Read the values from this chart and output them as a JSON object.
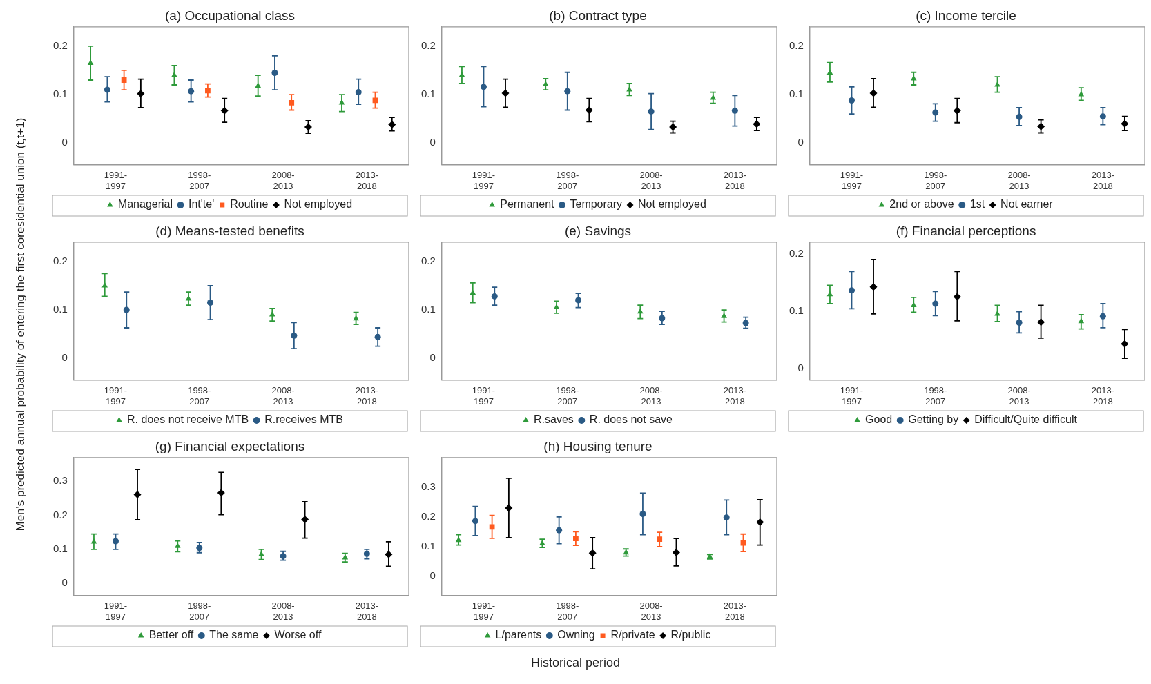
{
  "chart_data": [
    {
      "type": "scatter",
      "title": "(a) Occupational class",
      "categories": [
        "1991-1997",
        "1998-2007",
        "2008-2013",
        "2013-2018"
      ],
      "ylim": [
        -0.045,
        0.24
      ],
      "yticks": [
        0,
        0.1,
        0.2
      ],
      "grid": false,
      "legend": "bottom",
      "series": [
        {
          "name": "Managerial",
          "color": "#2e9a3a",
          "marker": "triangle",
          "values": [
            0.165,
            0.14,
            0.118,
            0.083
          ],
          "errors": [
            [
              0.13,
              0.2
            ],
            [
              0.12,
              0.16
            ],
            [
              0.097,
              0.14
            ],
            [
              0.065,
              0.1
            ]
          ]
        },
        {
          "name": "Int'te'",
          "color": "#2a5a85",
          "marker": "circle",
          "values": [
            0.11,
            0.107,
            0.145,
            0.105
          ],
          "errors": [
            [
              0.085,
              0.137
            ],
            [
              0.085,
              0.13
            ],
            [
              0.11,
              0.18
            ],
            [
              0.08,
              0.132
            ]
          ]
        },
        {
          "name": "Routine",
          "color": "#ff5a1f",
          "marker": "square",
          "values": [
            0.13,
            0.108,
            0.083,
            0.088
          ],
          "errors": [
            [
              0.11,
              0.15
            ],
            [
              0.095,
              0.122
            ],
            [
              0.068,
              0.1
            ],
            [
              0.072,
              0.105
            ]
          ]
        },
        {
          "name": "Not employed",
          "color": "#000000",
          "marker": "diamond",
          "values": [
            0.102,
            0.067,
            0.033,
            0.038
          ],
          "errors": [
            [
              0.073,
              0.132
            ],
            [
              0.043,
              0.092
            ],
            [
              0.02,
              0.046
            ],
            [
              0.025,
              0.053
            ]
          ]
        }
      ]
    },
    {
      "type": "scatter",
      "title": "(b) Contract type",
      "categories": [
        "1991-1997",
        "1998-2007",
        "2008-2013",
        "2013-2018"
      ],
      "ylim": [
        -0.045,
        0.24
      ],
      "yticks": [
        0,
        0.1,
        0.2
      ],
      "grid": false,
      "legend": "bottom",
      "series": [
        {
          "name": "Permanent",
          "color": "#2e9a3a",
          "marker": "triangle",
          "values": [
            0.14,
            0.121,
            0.11,
            0.093
          ],
          "errors": [
            [
              0.123,
              0.158
            ],
            [
              0.11,
              0.133
            ],
            [
              0.098,
              0.123
            ],
            [
              0.082,
              0.105
            ]
          ]
        },
        {
          "name": "Temporary",
          "color": "#2a5a85",
          "marker": "circle",
          "values": [
            0.116,
            0.107,
            0.065,
            0.067
          ],
          "errors": [
            [
              0.075,
              0.158
            ],
            [
              0.068,
              0.146
            ],
            [
              0.028,
              0.102
            ],
            [
              0.035,
              0.098
            ]
          ]
        },
        {
          "name": "Not employed",
          "color": "#000000",
          "marker": "diamond",
          "values": [
            0.103,
            0.068,
            0.033,
            0.039
          ],
          "errors": [
            [
              0.074,
              0.132
            ],
            [
              0.044,
              0.092
            ],
            [
              0.021,
              0.045
            ],
            [
              0.026,
              0.053
            ]
          ]
        }
      ]
    },
    {
      "type": "scatter",
      "title": "(c) Income tercile",
      "categories": [
        "1991-1997",
        "1998-2007",
        "2008-2013",
        "2013-2018"
      ],
      "ylim": [
        -0.045,
        0.24
      ],
      "yticks": [
        0,
        0.1,
        0.2
      ],
      "grid": false,
      "legend": "bottom",
      "series": [
        {
          "name": "2nd or above",
          "color": "#2e9a3a",
          "marker": "triangle",
          "values": [
            0.145,
            0.133,
            0.12,
            0.1
          ],
          "errors": [
            [
              0.126,
              0.166
            ],
            [
              0.12,
              0.146
            ],
            [
              0.105,
              0.137
            ],
            [
              0.088,
              0.114
            ]
          ]
        },
        {
          "name": "1st",
          "color": "#2a5a85",
          "marker": "circle",
          "values": [
            0.088,
            0.063,
            0.054,
            0.055
          ],
          "errors": [
            [
              0.06,
              0.116
            ],
            [
              0.045,
              0.081
            ],
            [
              0.036,
              0.073
            ],
            [
              0.038,
              0.073
            ]
          ]
        },
        {
          "name": "Not earner",
          "color": "#000000",
          "marker": "diamond",
          "values": [
            0.103,
            0.067,
            0.034,
            0.04
          ],
          "errors": [
            [
              0.074,
              0.133
            ],
            [
              0.042,
              0.092
            ],
            [
              0.021,
              0.048
            ],
            [
              0.026,
              0.055
            ]
          ]
        }
      ]
    },
    {
      "type": "scatter",
      "title": "(d) Means-tested benefits",
      "ylabel": "Men's predicted annual probability of entering the first coresidential union (t,t+1)",
      "categories": [
        "1991-1997",
        "1998-2007",
        "2008-2013",
        "2013-2018"
      ],
      "ylim": [
        -0.045,
        0.24
      ],
      "yticks": [
        0,
        0.1,
        0.2
      ],
      "grid": false,
      "legend": "bottom",
      "series": [
        {
          "name": "R. does not receive MTB",
          "color": "#2e9a3a",
          "marker": "triangle",
          "values": [
            0.15,
            0.123,
            0.09,
            0.082
          ],
          "errors": [
            [
              0.128,
              0.175
            ],
            [
              0.11,
              0.137
            ],
            [
              0.077,
              0.103
            ],
            [
              0.07,
              0.095
            ]
          ]
        },
        {
          "name": "R.receives MTB",
          "color": "#2a5a85",
          "marker": "circle",
          "values": [
            0.1,
            0.115,
            0.047,
            0.044
          ],
          "errors": [
            [
              0.063,
              0.137
            ],
            [
              0.08,
              0.15
            ],
            [
              0.02,
              0.074
            ],
            [
              0.025,
              0.063
            ]
          ]
        }
      ]
    },
    {
      "type": "scatter",
      "title": "(e) Savings",
      "categories": [
        "1991-1997",
        "1998-2007",
        "2008-2013",
        "2013-2018"
      ],
      "ylim": [
        -0.045,
        0.24
      ],
      "yticks": [
        0,
        0.1,
        0.2
      ],
      "grid": false,
      "legend": "bottom",
      "series": [
        {
          "name": "R.saves",
          "color": "#2e9a3a",
          "marker": "triangle",
          "values": [
            0.135,
            0.105,
            0.096,
            0.087
          ],
          "errors": [
            [
              0.115,
              0.156
            ],
            [
              0.093,
              0.118
            ],
            [
              0.082,
              0.11
            ],
            [
              0.075,
              0.1
            ]
          ]
        },
        {
          "name": "R. does not save",
          "color": "#2a5a85",
          "marker": "circle",
          "values": [
            0.128,
            0.12,
            0.083,
            0.073
          ],
          "errors": [
            [
              0.11,
              0.147
            ],
            [
              0.105,
              0.134
            ],
            [
              0.07,
              0.097
            ],
            [
              0.062,
              0.085
            ]
          ]
        }
      ]
    },
    {
      "type": "scatter",
      "title": "(f) Financial perceptions",
      "categories": [
        "1991-1997",
        "1998-2007",
        "2008-2013",
        "2013-2018"
      ],
      "ylim": [
        -0.02,
        0.22
      ],
      "yticks": [
        0,
        0.1,
        0.2
      ],
      "grid": false,
      "legend": "bottom",
      "series": [
        {
          "name": "Good",
          "color": "#2e9a3a",
          "marker": "triangle",
          "values": [
            0.129,
            0.11,
            0.095,
            0.082
          ],
          "errors": [
            [
              0.113,
              0.145
            ],
            [
              0.098,
              0.124
            ],
            [
              0.082,
              0.11
            ],
            [
              0.069,
              0.094
            ]
          ]
        },
        {
          "name": "Getting by",
          "color": "#2a5a85",
          "marker": "circle",
          "values": [
            0.136,
            0.113,
            0.08,
            0.091
          ],
          "errors": [
            [
              0.104,
              0.169
            ],
            [
              0.092,
              0.134
            ],
            [
              0.062,
              0.099
            ],
            [
              0.071,
              0.113
            ]
          ]
        },
        {
          "name": "Difficult/Quite difficult",
          "color": "#000000",
          "marker": "diamond",
          "values": [
            0.142,
            0.125,
            0.081,
            0.043
          ],
          "errors": [
            [
              0.095,
              0.19
            ],
            [
              0.083,
              0.169
            ],
            [
              0.053,
              0.11
            ],
            [
              0.018,
              0.068
            ]
          ]
        }
      ]
    },
    {
      "type": "scatter",
      "title": "(g) Financial expectations",
      "categories": [
        "1991-1997",
        "1998-2007",
        "2008-2013",
        "2013-2018"
      ],
      "ylim": [
        -0.036,
        0.37
      ],
      "yticks": [
        0,
        0.1,
        0.2,
        0.3
      ],
      "grid": false,
      "legend": "bottom",
      "series": [
        {
          "name": "Better off",
          "color": "#2e9a3a",
          "marker": "triangle",
          "values": [
            0.122,
            0.109,
            0.085,
            0.075
          ],
          "errors": [
            [
              0.1,
              0.145
            ],
            [
              0.093,
              0.125
            ],
            [
              0.07,
              0.1
            ],
            [
              0.063,
              0.088
            ]
          ]
        },
        {
          "name": "The same",
          "color": "#2a5a85",
          "marker": "circle",
          "values": [
            0.124,
            0.104,
            0.08,
            0.087
          ],
          "errors": [
            [
              0.1,
              0.145
            ],
            [
              0.09,
              0.12
            ],
            [
              0.068,
              0.094
            ],
            [
              0.072,
              0.1
            ]
          ]
        },
        {
          "name": "Worse off",
          "color": "#000000",
          "marker": "diamond",
          "values": [
            0.261,
            0.266,
            0.188,
            0.085
          ],
          "errors": [
            [
              0.187,
              0.335
            ],
            [
              0.202,
              0.326
            ],
            [
              0.133,
              0.24
            ],
            [
              0.05,
              0.122
            ]
          ]
        }
      ]
    },
    {
      "type": "scatter",
      "title": "(h) Housing tenure",
      "xlabel": "Historical period",
      "categories": [
        "1991-1997",
        "1998-2007",
        "2008-2013",
        "2013-2018"
      ],
      "ylim": [
        -0.065,
        0.4
      ],
      "yticks": [
        0,
        0.1,
        0.2,
        0.3
      ],
      "grid": false,
      "legend": "bottom",
      "series": [
        {
          "name": "L/parents",
          "color": "#2e9a3a",
          "marker": "triangle",
          "values": [
            0.121,
            0.11,
            0.079,
            0.066
          ],
          "errors": [
            [
              0.105,
              0.14
            ],
            [
              0.097,
              0.125
            ],
            [
              0.068,
              0.092
            ],
            [
              0.058,
              0.073
            ]
          ]
        },
        {
          "name": "Owning",
          "color": "#2a5a85",
          "marker": "circle",
          "values": [
            0.186,
            0.155,
            0.21,
            0.198
          ],
          "errors": [
            [
              0.137,
              0.235
            ],
            [
              0.11,
              0.2
            ],
            [
              0.14,
              0.28
            ],
            [
              0.14,
              0.257
            ]
          ]
        },
        {
          "name": "R/private",
          "color": "#ff5a1f",
          "marker": "square",
          "values": [
            0.166,
            0.127,
            0.125,
            0.112
          ],
          "errors": [
            [
              0.128,
              0.205
            ],
            [
              0.104,
              0.15
            ],
            [
              0.1,
              0.148
            ],
            [
              0.083,
              0.142
            ]
          ]
        },
        {
          "name": "R/public",
          "color": "#000000",
          "marker": "diamond",
          "values": [
            0.23,
            0.078,
            0.08,
            0.182
          ],
          "errors": [
            [
              0.13,
              0.33
            ],
            [
              0.025,
              0.13
            ],
            [
              0.035,
              0.127
            ],
            [
              0.105,
              0.258
            ]
          ]
        }
      ]
    }
  ]
}
